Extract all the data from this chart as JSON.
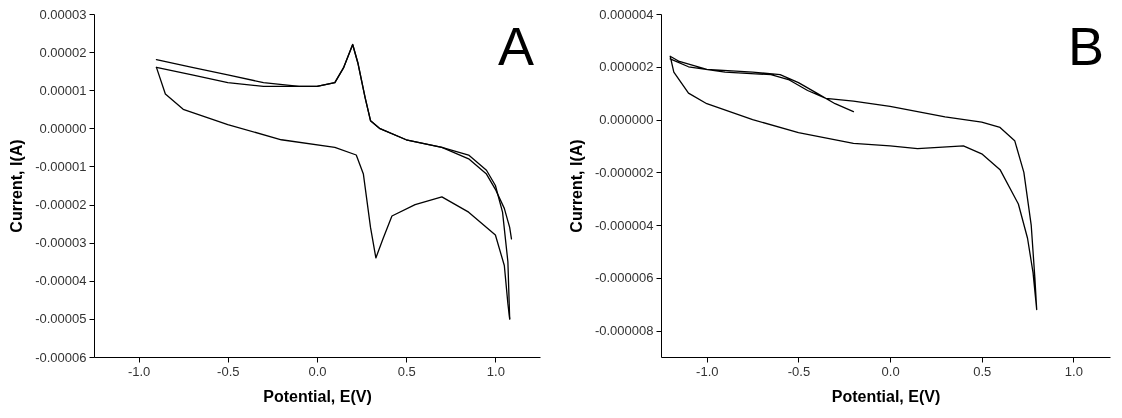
{
  "chart_data": [
    {
      "type": "line",
      "xlabel": "Potential, E(V)",
      "ylabel": "Current, I(A)",
      "annotations": [
        "A"
      ],
      "xlim": [
        -1.25,
        1.25
      ],
      "ylim": [
        -6e-05,
        3e-05
      ],
      "xticks": [
        {
          "value": -1,
          "label": "-1.0"
        },
        {
          "value": -0.5,
          "label": "-0.5"
        },
        {
          "value": 0,
          "label": "0.0"
        },
        {
          "value": 0.5,
          "label": "0.5"
        },
        {
          "value": 1,
          "label": "1.0"
        }
      ],
      "yticks": [
        {
          "value": -6e-05,
          "label": "-0.00006"
        },
        {
          "value": -5e-05,
          "label": "-0.00005"
        },
        {
          "value": -4e-05,
          "label": "-0.00004"
        },
        {
          "value": -3e-05,
          "label": "-0.00003"
        },
        {
          "value": -2e-05,
          "label": "-0.00002"
        },
        {
          "value": -1e-05,
          "label": "-0.00001"
        },
        {
          "value": 0,
          "label": "0.00000"
        },
        {
          "value": 1e-05,
          "label": "0.00001"
        },
        {
          "value": 2e-05,
          "label": "0.00002"
        },
        {
          "value": 3e-05,
          "label": "0.00003"
        }
      ],
      "series": [
        {
          "color": "#000000",
          "x": [
            -0.9,
            -0.7,
            -0.5,
            -0.3,
            -0.1,
            0.0,
            0.1,
            0.15,
            0.2,
            0.23,
            0.27,
            0.3,
            0.35,
            0.5,
            0.7,
            0.85,
            0.95,
            1.0,
            1.05,
            1.08,
            1.09
          ],
          "values": [
            1.8e-05,
            1.6e-05,
            1.4e-05,
            1.2e-05,
            1.1e-05,
            1.1e-05,
            1.2e-05,
            1.6e-05,
            2.2e-05,
            1.7e-05,
            8e-06,
            2e-06,
            0.0,
            -3e-06,
            -5e-06,
            -8e-06,
            -1.2e-05,
            -1.6e-05,
            -2.1e-05,
            -2.6e-05,
            -2.9e-05
          ]
        },
        {
          "color": "#000000",
          "x": [
            -0.9,
            -0.7,
            -0.5,
            -0.3,
            -0.1,
            0.0,
            0.1,
            0.15,
            0.2,
            0.23,
            0.27,
            0.3,
            0.35,
            0.5,
            0.7,
            0.85,
            0.95,
            1.0,
            1.04,
            1.07,
            1.08
          ],
          "values": [
            1.6e-05,
            1.4e-05,
            1.2e-05,
            1.1e-05,
            1.1e-05,
            1.1e-05,
            1.2e-05,
            1.6e-05,
            2.2e-05,
            1.7e-05,
            8e-06,
            2e-06,
            0.0,
            -3e-06,
            -5e-06,
            -7e-06,
            -1.1e-05,
            -1.5e-05,
            -2.2e-05,
            -3.5e-05,
            -5e-05
          ]
        },
        {
          "color": "#000000",
          "x": [
            1.08,
            1.07,
            1.05,
            1.0,
            0.85,
            0.7,
            0.55,
            0.42,
            0.37,
            0.33,
            0.3,
            0.26,
            0.22,
            0.1,
            -0.2,
            -0.5,
            -0.75,
            -0.85,
            -0.9
          ],
          "values": [
            -5e-05,
            -4.6e-05,
            -3.6e-05,
            -2.8e-05,
            -2.2e-05,
            -1.8e-05,
            -2e-05,
            -2.3e-05,
            -2.9e-05,
            -3.4e-05,
            -2.6e-05,
            -1.2e-05,
            -7e-06,
            -5e-06,
            -3e-06,
            1e-06,
            5e-06,
            9e-06,
            1.6e-05
          ]
        }
      ]
    },
    {
      "type": "line",
      "xlabel": "Potential, E(V)",
      "ylabel": "Current, I(A)",
      "annotations": [
        "B"
      ],
      "xlim": [
        -1.25,
        1.2
      ],
      "ylim": [
        -9e-06,
        4e-06
      ],
      "xticks": [
        {
          "value": -1,
          "label": "-1.0"
        },
        {
          "value": -0.5,
          "label": "-0.5"
        },
        {
          "value": 0,
          "label": "0.0"
        },
        {
          "value": 0.5,
          "label": "0.5"
        },
        {
          "value": 1,
          "label": "1.0"
        }
      ],
      "yticks": [
        {
          "value": -8e-06,
          "label": "-0.000008"
        },
        {
          "value": -6e-06,
          "label": "-0.000006"
        },
        {
          "value": -4e-06,
          "label": "-0.000004"
        },
        {
          "value": -2e-06,
          "label": "-0.000002"
        },
        {
          "value": 0,
          "label": "0.000000"
        },
        {
          "value": 2e-06,
          "label": "0.000002"
        },
        {
          "value": 4e-06,
          "label": "0.000004"
        }
      ],
      "series": [
        {
          "color": "#000000",
          "x": [
            -0.2,
            -0.3,
            -0.4,
            -0.5,
            -0.6,
            -0.75,
            -1.0,
            -1.15,
            -1.2,
            -1.18,
            -1.1,
            -1.0,
            -0.75,
            -0.5,
            -0.2,
            0.0,
            0.15,
            0.4,
            0.5,
            0.6,
            0.7,
            0.75,
            0.78,
            0.8,
            0.79,
            0.77,
            0.73,
            0.68,
            0.6,
            0.5,
            0.3,
            0.0,
            -0.2,
            -0.35,
            -0.45,
            -0.55,
            -0.65,
            -0.9,
            -1.1,
            -1.2
          ],
          "values": [
            3e-07,
            6e-07,
            1e-06,
            1.4e-06,
            1.7e-06,
            1.8e-06,
            1.9e-06,
            2.2e-06,
            2.4e-06,
            1.8e-06,
            1e-06,
            6e-07,
            0.0,
            -5e-07,
            -9e-07,
            -1e-06,
            -1.1e-06,
            -1e-06,
            -1.3e-06,
            -1.9e-06,
            -3.2e-06,
            -4.5e-06,
            -5.8e-06,
            -7.2e-06,
            -6e-06,
            -4e-06,
            -2e-06,
            -8e-07,
            -3e-07,
            -1e-07,
            1e-07,
            5e-07,
            7e-07,
            8e-07,
            1.1e-06,
            1.5e-06,
            1.7e-06,
            1.8e-06,
            2e-06,
            2.3e-06
          ]
        }
      ]
    }
  ]
}
